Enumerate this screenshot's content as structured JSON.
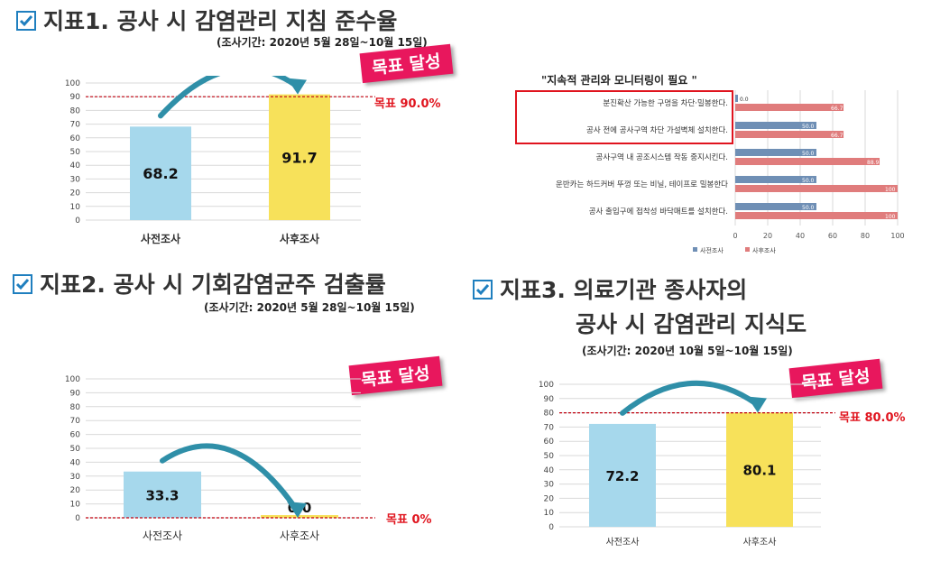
{
  "indicator1": {
    "title": "지표1. 공사 시 감염관리 지침 준수율",
    "period": "(조사기간: 2020년 5월 28일~10월 15일)",
    "badge": "목표 달성",
    "target_label": "목표 90.0%"
  },
  "indicator2": {
    "title": "지표2. 공사 시 기회감염균주 검출률",
    "period": "(조사기간: 2020년 5월 28일~10월 15일)",
    "badge": "목표 달성",
    "target_label": "목표 0%"
  },
  "indicator3": {
    "title_line1": "지표3. 의료기관 종사자의",
    "title_line2": "공사 시 감염관리 지식도",
    "period": "(조사기간: 2020년 10월 5일~10월 15일)",
    "badge": "목표 달성",
    "target_label": "목표 80.0%"
  },
  "colors": {
    "pre": "#a6d8ec",
    "post": "#f7e15a",
    "target_line": "#c0000f",
    "badge": "#e8175d",
    "arrow": "#2f8fa8",
    "hbar_pre": "#6f8fb5",
    "hbar_post": "#e07c7c"
  },
  "chart_data": [
    {
      "id": "chart1",
      "type": "bar",
      "categories": [
        "사전조사",
        "사후조사"
      ],
      "values": [
        68.2,
        91.7
      ],
      "value_labels": [
        "68.2",
        "91.7"
      ],
      "target": 90,
      "ylim": [
        0,
        100
      ],
      "yticks": [
        0,
        10,
        20,
        30,
        40,
        50,
        60,
        70,
        80,
        90,
        100
      ],
      "ytick_labels": [
        "0",
        "10",
        "20",
        "30",
        "40",
        "50",
        "60",
        "70",
        "80",
        "90",
        "100"
      ]
    },
    {
      "id": "chart2",
      "type": "bar",
      "categories": [
        "사전조사",
        "사후조사"
      ],
      "values": [
        33.3,
        0.0
      ],
      "value_labels": [
        "33.3",
        "0.0"
      ],
      "target": 0,
      "ylim": [
        0,
        100
      ],
      "yticks": [
        0,
        10,
        20,
        30,
        40,
        50,
        60,
        70,
        80,
        90,
        100
      ],
      "ytick_labels": [
        "0",
        "10",
        "20",
        "30",
        "40",
        "50",
        "60",
        "70",
        "80",
        "90",
        "100"
      ]
    },
    {
      "id": "chart3",
      "type": "bar",
      "categories": [
        "사전조사",
        "사후조사"
      ],
      "values": [
        72.2,
        80.1
      ],
      "value_labels": [
        "72.2",
        "80.1"
      ],
      "target": 80,
      "ylim": [
        0,
        100
      ],
      "yticks": [
        0,
        10,
        20,
        30,
        40,
        50,
        60,
        70,
        80,
        90,
        100
      ],
      "ytick_labels": [
        "0",
        "10",
        "20",
        "30",
        "40",
        "50",
        "60",
        "70",
        "80",
        "90",
        "100"
      ]
    },
    {
      "id": "chart4",
      "type": "bar",
      "orientation": "horizontal",
      "title": "\"지속적 관리와 모니터링이 필요 \"",
      "categories": [
        "분진확산 가능한 구멍을 차단·밀봉한다.",
        "공사 전에 공사구역 차단 가설벽체 설치한다.",
        "공사구역 내 공조시스템 작동 중지시킨다.",
        "운반카는 하드커버 뚜껑 또는 비닐, 테이프로 밀봉한다",
        "공사 출입구에 접착성 바닥매트를 설치한다."
      ],
      "series": [
        {
          "name": "사전조사",
          "values": [
            0.0,
            50.0,
            50.0,
            50.0,
            50.0
          ],
          "labels": [
            "0.0",
            "50.0",
            "50.0",
            "50.0",
            "50.0"
          ]
        },
        {
          "name": "사후조사",
          "values": [
            66.7,
            66.7,
            88.9,
            100,
            100
          ],
          "labels": [
            "66.7",
            "66.7",
            "88.9",
            "100",
            "100"
          ]
        }
      ],
      "xlim": [
        0,
        100
      ],
      "xticks": [
        0,
        20,
        40,
        60,
        80,
        100
      ],
      "xtick_labels": [
        "0",
        "20",
        "40",
        "60",
        "80",
        "100"
      ],
      "legend": "bottom",
      "highlighted_rows": [
        0,
        1
      ]
    }
  ]
}
